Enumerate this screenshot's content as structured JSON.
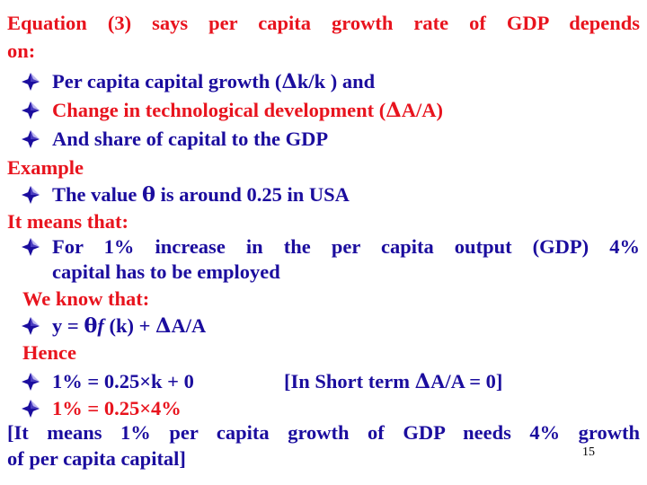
{
  "intro": {
    "line1": "Equation (3) says per capita growth rate of GDP depends",
    "line2": "on:"
  },
  "bullets_a": [
    {
      "pre": "Per capita capital growth (",
      "delta": "Δ",
      "post": "k/k ) and"
    },
    {
      "pre": "Change in technological development (",
      "delta": "Δ",
      "post": "A/A)"
    },
    {
      "pre": "And share of capital to the GDP",
      "delta": "",
      "post": ""
    }
  ],
  "example_heading": "Example",
  "example_bullet": {
    "pre": "The value ",
    "theta": "θ",
    "post": " is around 0.25 in USA"
  },
  "means_heading": "It means that:",
  "means_bullet": {
    "line1": "For 1% increase in the per capita output (GDP) 4%",
    "line2": "capital has to be employed"
  },
  "know_heading": "We know that:",
  "know_bullet": {
    "pre": "y = ",
    "theta": "θ",
    "f": "f",
    "mid": " (k) + ",
    "delta": "Δ",
    "post": "A/A"
  },
  "hence_heading": "Hence",
  "hence_bullets": [
    {
      "text": "1% = 0.25×k + 0",
      "note_pre": "[In Short term ",
      "delta": "Δ",
      "note_post": "A/A = 0]"
    },
    {
      "text": "1% = 0.25×4%"
    }
  ],
  "conclusion": {
    "line1": "[It means 1% per capita growth of GDP needs 4% growth",
    "line2": "of per capita capital]"
  },
  "page_number": "15",
  "colors": {
    "red": "#e8141e",
    "navy": "#1b0d9e",
    "bullet": "#1b0d9e"
  },
  "bullet_icon": "diamond-four-point-icon"
}
